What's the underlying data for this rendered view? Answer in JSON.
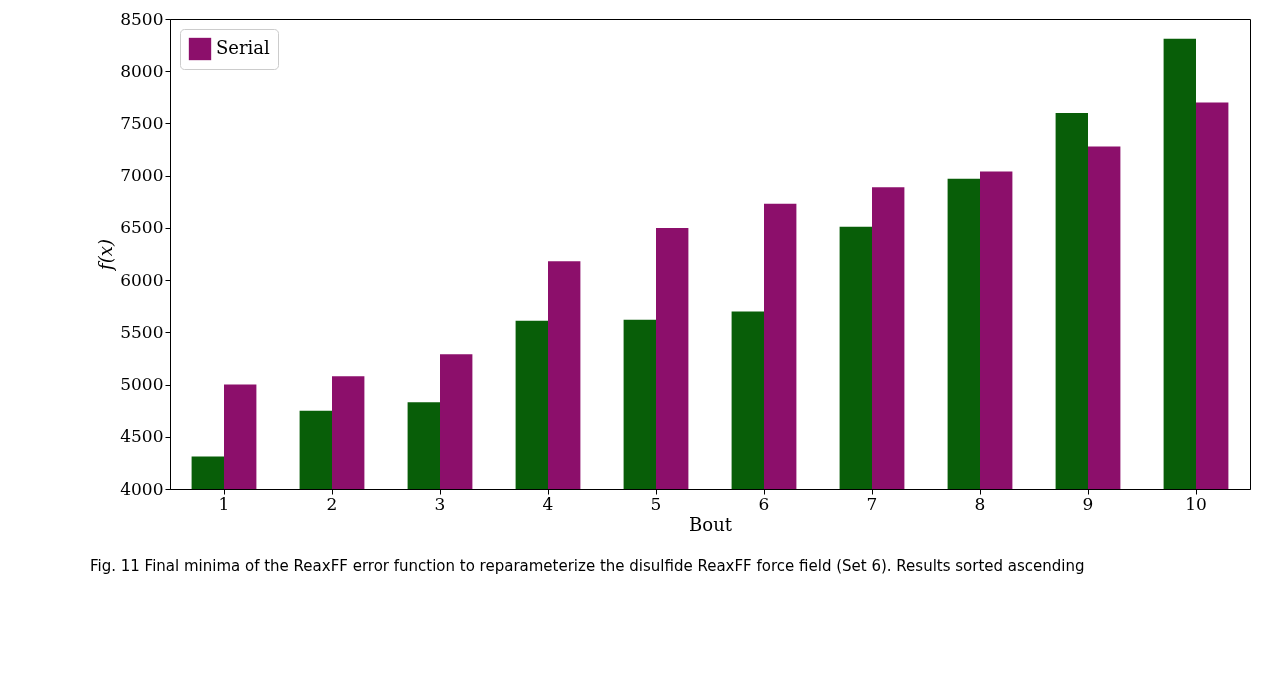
{
  "chart_data": {
    "type": "bar",
    "xlabel": "Bout",
    "ylabel": "f(x)",
    "categories": [
      "1",
      "2",
      "3",
      "4",
      "5",
      "6",
      "7",
      "8",
      "9",
      "10"
    ],
    "series": [
      {
        "color": "#085e08",
        "values": [
          4310,
          4750,
          4830,
          5610,
          5620,
          5700,
          6510,
          6970,
          7600,
          8310
        ]
      },
      {
        "name": "Serial",
        "color": "#8c0f6b",
        "values": [
          5000,
          5080,
          5290,
          6180,
          6500,
          6730,
          6890,
          7040,
          7280,
          7700
        ]
      }
    ],
    "ylim": [
      4000,
      8500
    ],
    "yticks": [
      4000,
      4500,
      5000,
      5500,
      6000,
      6500,
      7000,
      7500,
      8000,
      8500
    ],
    "grid": false,
    "legend": "top left",
    "annotations": [
      "Fig. 11 Final minima of the ReaxFF error function to reparameterize the disulfide ReaxFF force field (Set 6). Results sorted ascending"
    ]
  }
}
